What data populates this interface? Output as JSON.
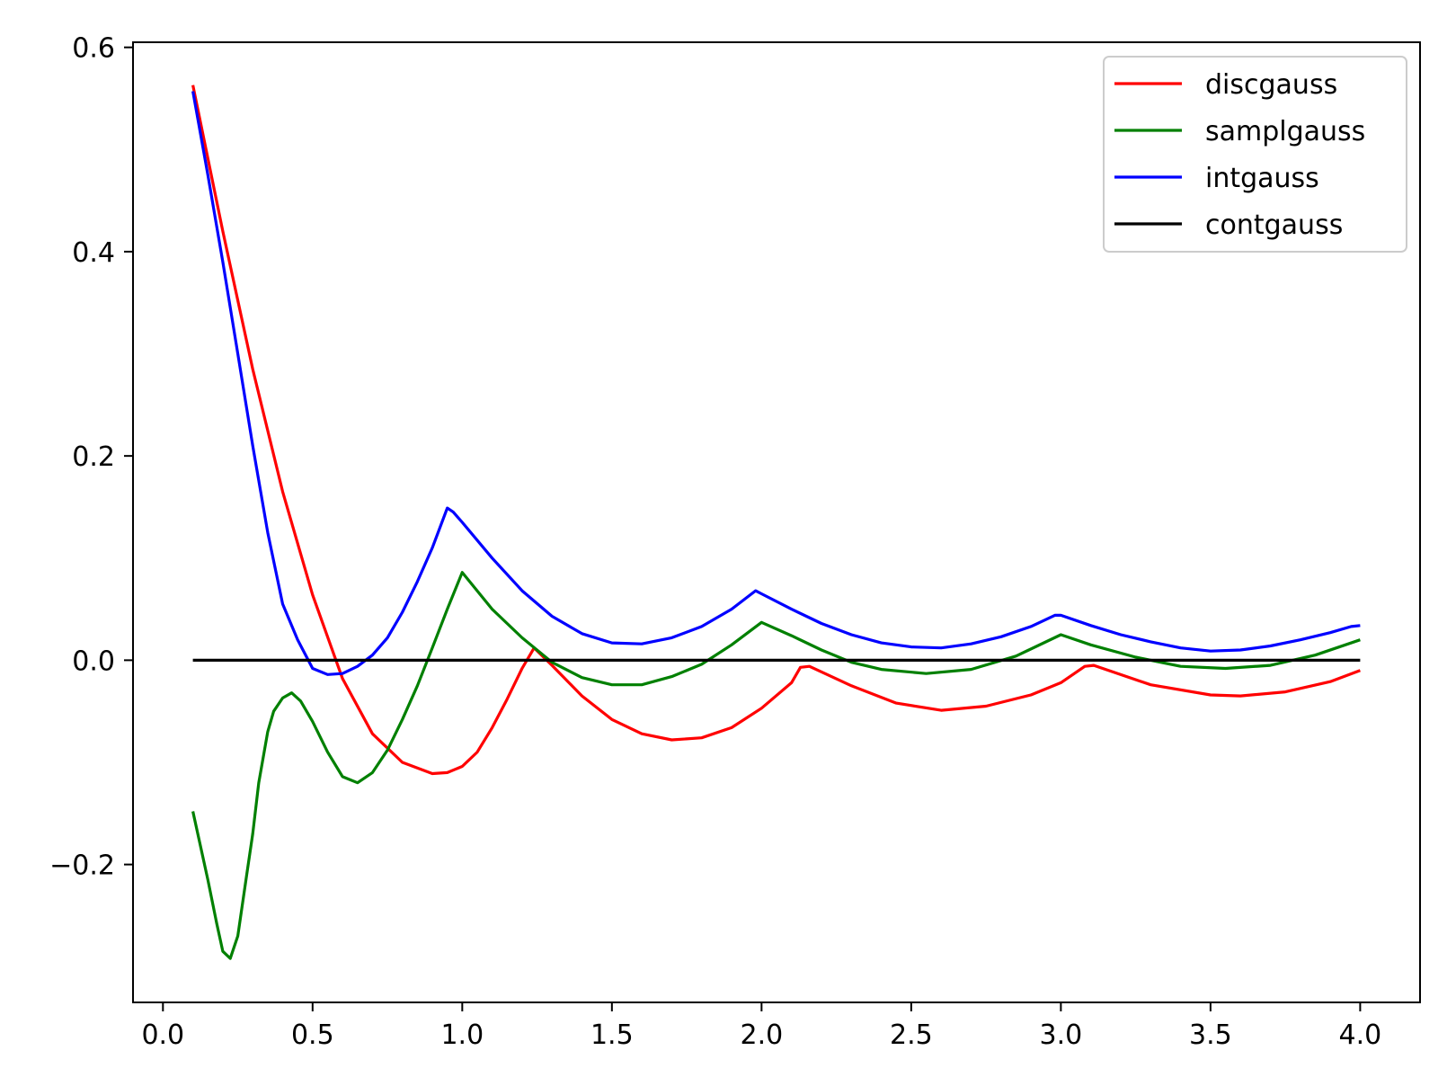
{
  "chart_data": {
    "type": "line",
    "title": "",
    "xlabel": "",
    "ylabel": "",
    "xlim": [
      -0.1,
      4.2
    ],
    "ylim": [
      -0.335,
      0.605
    ],
    "grid": false,
    "legend_position": "top-right",
    "x_ticks": [
      0.0,
      0.5,
      1.0,
      1.5,
      2.0,
      2.5,
      3.0,
      3.5,
      4.0
    ],
    "x_tick_labels": [
      "0.0",
      "0.5",
      "1.0",
      "1.5",
      "2.0",
      "2.5",
      "3.0",
      "3.5",
      "4.0"
    ],
    "y_ticks": [
      -0.2,
      0.0,
      0.2,
      0.4,
      0.6
    ],
    "y_tick_labels": [
      "−0.2",
      "0.0",
      "0.2",
      "0.4",
      "0.6"
    ],
    "series": [
      {
        "name": "discgauss",
        "color": "#ff0000",
        "points": [
          [
            0.1,
            0.563
          ],
          [
            0.2,
            0.42
          ],
          [
            0.3,
            0.285
          ],
          [
            0.4,
            0.165
          ],
          [
            0.5,
            0.064
          ],
          [
            0.6,
            -0.018
          ],
          [
            0.7,
            -0.072
          ],
          [
            0.8,
            -0.1
          ],
          [
            0.9,
            -0.111
          ],
          [
            0.95,
            -0.11
          ],
          [
            1.0,
            -0.104
          ],
          [
            1.05,
            -0.09
          ],
          [
            1.1,
            -0.066
          ],
          [
            1.15,
            -0.038
          ],
          [
            1.2,
            -0.008
          ],
          [
            1.24,
            0.012
          ],
          [
            1.3,
            -0.005
          ],
          [
            1.4,
            -0.035
          ],
          [
            1.5,
            -0.058
          ],
          [
            1.6,
            -0.072
          ],
          [
            1.7,
            -0.078
          ],
          [
            1.8,
            -0.076
          ],
          [
            1.9,
            -0.066
          ],
          [
            2.0,
            -0.047
          ],
          [
            2.1,
            -0.022
          ],
          [
            2.13,
            -0.007
          ],
          [
            2.16,
            -0.006
          ],
          [
            2.3,
            -0.025
          ],
          [
            2.45,
            -0.042
          ],
          [
            2.6,
            -0.049
          ],
          [
            2.75,
            -0.045
          ],
          [
            2.9,
            -0.034
          ],
          [
            3.0,
            -0.022
          ],
          [
            3.08,
            -0.006
          ],
          [
            3.11,
            -0.005
          ],
          [
            3.3,
            -0.024
          ],
          [
            3.5,
            -0.034
          ],
          [
            3.6,
            -0.035
          ],
          [
            3.75,
            -0.031
          ],
          [
            3.9,
            -0.021
          ],
          [
            4.0,
            -0.01
          ]
        ]
      },
      {
        "name": "samplgauss",
        "color": "#008000",
        "points": [
          [
            0.1,
            -0.148
          ],
          [
            0.15,
            -0.215
          ],
          [
            0.18,
            -0.258
          ],
          [
            0.2,
            -0.285
          ],
          [
            0.225,
            -0.292
          ],
          [
            0.25,
            -0.27
          ],
          [
            0.28,
            -0.21
          ],
          [
            0.3,
            -0.17
          ],
          [
            0.32,
            -0.12
          ],
          [
            0.35,
            -0.07
          ],
          [
            0.37,
            -0.05
          ],
          [
            0.4,
            -0.037
          ],
          [
            0.43,
            -0.032
          ],
          [
            0.46,
            -0.04
          ],
          [
            0.5,
            -0.06
          ],
          [
            0.55,
            -0.09
          ],
          [
            0.6,
            -0.114
          ],
          [
            0.65,
            -0.12
          ],
          [
            0.7,
            -0.11
          ],
          [
            0.75,
            -0.088
          ],
          [
            0.8,
            -0.058
          ],
          [
            0.85,
            -0.025
          ],
          [
            0.9,
            0.012
          ],
          [
            0.95,
            0.05
          ],
          [
            1.0,
            0.086
          ],
          [
            1.1,
            0.05
          ],
          [
            1.2,
            0.022
          ],
          [
            1.3,
            -0.002
          ],
          [
            1.4,
            -0.017
          ],
          [
            1.5,
            -0.024
          ],
          [
            1.6,
            -0.024
          ],
          [
            1.7,
            -0.016
          ],
          [
            1.8,
            -0.004
          ],
          [
            1.9,
            0.015
          ],
          [
            2.0,
            0.037
          ],
          [
            2.1,
            0.024
          ],
          [
            2.2,
            0.01
          ],
          [
            2.3,
            -0.002
          ],
          [
            2.4,
            -0.009
          ],
          [
            2.55,
            -0.013
          ],
          [
            2.7,
            -0.009
          ],
          [
            2.85,
            0.004
          ],
          [
            3.0,
            0.025
          ],
          [
            3.1,
            0.015
          ],
          [
            3.25,
            0.003
          ],
          [
            3.4,
            -0.006
          ],
          [
            3.55,
            -0.008
          ],
          [
            3.7,
            -0.005
          ],
          [
            3.85,
            0.005
          ],
          [
            4.0,
            0.02
          ]
        ]
      },
      {
        "name": "intgauss",
        "color": "#0000ff",
        "points": [
          [
            0.1,
            0.557
          ],
          [
            0.15,
            0.475
          ],
          [
            0.2,
            0.39
          ],
          [
            0.25,
            0.3
          ],
          [
            0.3,
            0.21
          ],
          [
            0.35,
            0.125
          ],
          [
            0.4,
            0.055
          ],
          [
            0.45,
            0.02
          ],
          [
            0.5,
            -0.008
          ],
          [
            0.55,
            -0.014
          ],
          [
            0.6,
            -0.013
          ],
          [
            0.65,
            -0.006
          ],
          [
            0.7,
            0.005
          ],
          [
            0.75,
            0.022
          ],
          [
            0.8,
            0.047
          ],
          [
            0.85,
            0.077
          ],
          [
            0.9,
            0.11
          ],
          [
            0.95,
            0.149
          ],
          [
            0.97,
            0.145
          ],
          [
            1.0,
            0.135
          ],
          [
            1.1,
            0.1
          ],
          [
            1.2,
            0.068
          ],
          [
            1.3,
            0.043
          ],
          [
            1.4,
            0.026
          ],
          [
            1.5,
            0.017
          ],
          [
            1.6,
            0.016
          ],
          [
            1.7,
            0.022
          ],
          [
            1.8,
            0.033
          ],
          [
            1.9,
            0.05
          ],
          [
            1.98,
            0.068
          ],
          [
            2.0,
            0.065
          ],
          [
            2.1,
            0.05
          ],
          [
            2.2,
            0.036
          ],
          [
            2.3,
            0.025
          ],
          [
            2.4,
            0.017
          ],
          [
            2.5,
            0.013
          ],
          [
            2.6,
            0.012
          ],
          [
            2.7,
            0.016
          ],
          [
            2.8,
            0.023
          ],
          [
            2.9,
            0.033
          ],
          [
            2.98,
            0.044
          ],
          [
            3.0,
            0.044
          ],
          [
            3.1,
            0.034
          ],
          [
            3.2,
            0.025
          ],
          [
            3.3,
            0.018
          ],
          [
            3.4,
            0.012
          ],
          [
            3.5,
            0.009
          ],
          [
            3.6,
            0.01
          ],
          [
            3.7,
            0.014
          ],
          [
            3.8,
            0.02
          ],
          [
            3.9,
            0.027
          ],
          [
            3.97,
            0.033
          ],
          [
            4.0,
            0.034
          ]
        ]
      },
      {
        "name": "contgauss",
        "color": "#000000",
        "points": [
          [
            0.1,
            0.0
          ],
          [
            4.0,
            0.0
          ]
        ]
      }
    ]
  }
}
